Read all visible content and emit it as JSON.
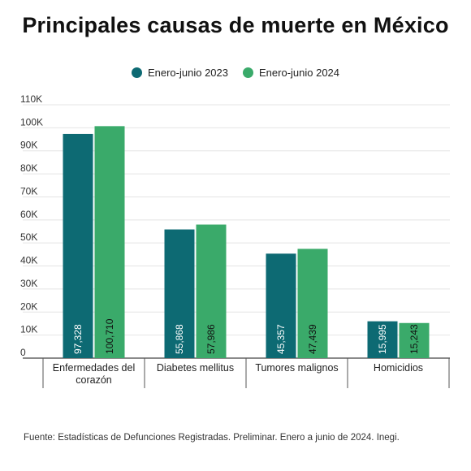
{
  "title": "Principales causas de muerte en México",
  "source": "Fuente: Estadísticas de Defunciones Registradas. Preliminar. Enero a junio de 2024. Inegi.",
  "colors": {
    "series1": "#0d6a73",
    "series2": "#3aaa6a"
  },
  "chart_data": {
    "type": "bar",
    "title": "Principales causas de muerte en México",
    "categories": [
      [
        "Enfermedades del",
        "corazón"
      ],
      [
        "Diabetes mellitus"
      ],
      [
        "Tumores malignos"
      ],
      [
        "Homicidios"
      ]
    ],
    "series": [
      {
        "name": "Enero-junio 2023",
        "values": [
          97328,
          55868,
          45357,
          15995
        ],
        "labels": [
          "97,328",
          "55,868",
          "45,357",
          "15,995"
        ]
      },
      {
        "name": "Enero-junio 2024",
        "values": [
          100710,
          57986,
          47439,
          15243
        ],
        "labels": [
          "100,710",
          "57,986",
          "47,439",
          "15,243"
        ]
      }
    ],
    "yticks": [
      0,
      10000,
      20000,
      30000,
      40000,
      50000,
      60000,
      70000,
      80000,
      90000,
      100000,
      110000
    ],
    "ytick_labels": [
      "0",
      "10K",
      "20K",
      "30K",
      "40K",
      "50K",
      "60K",
      "70K",
      "80K",
      "90K",
      "100K",
      "110K"
    ],
    "ylim": [
      0,
      110000
    ],
    "grid": true,
    "legend": "top-center"
  }
}
